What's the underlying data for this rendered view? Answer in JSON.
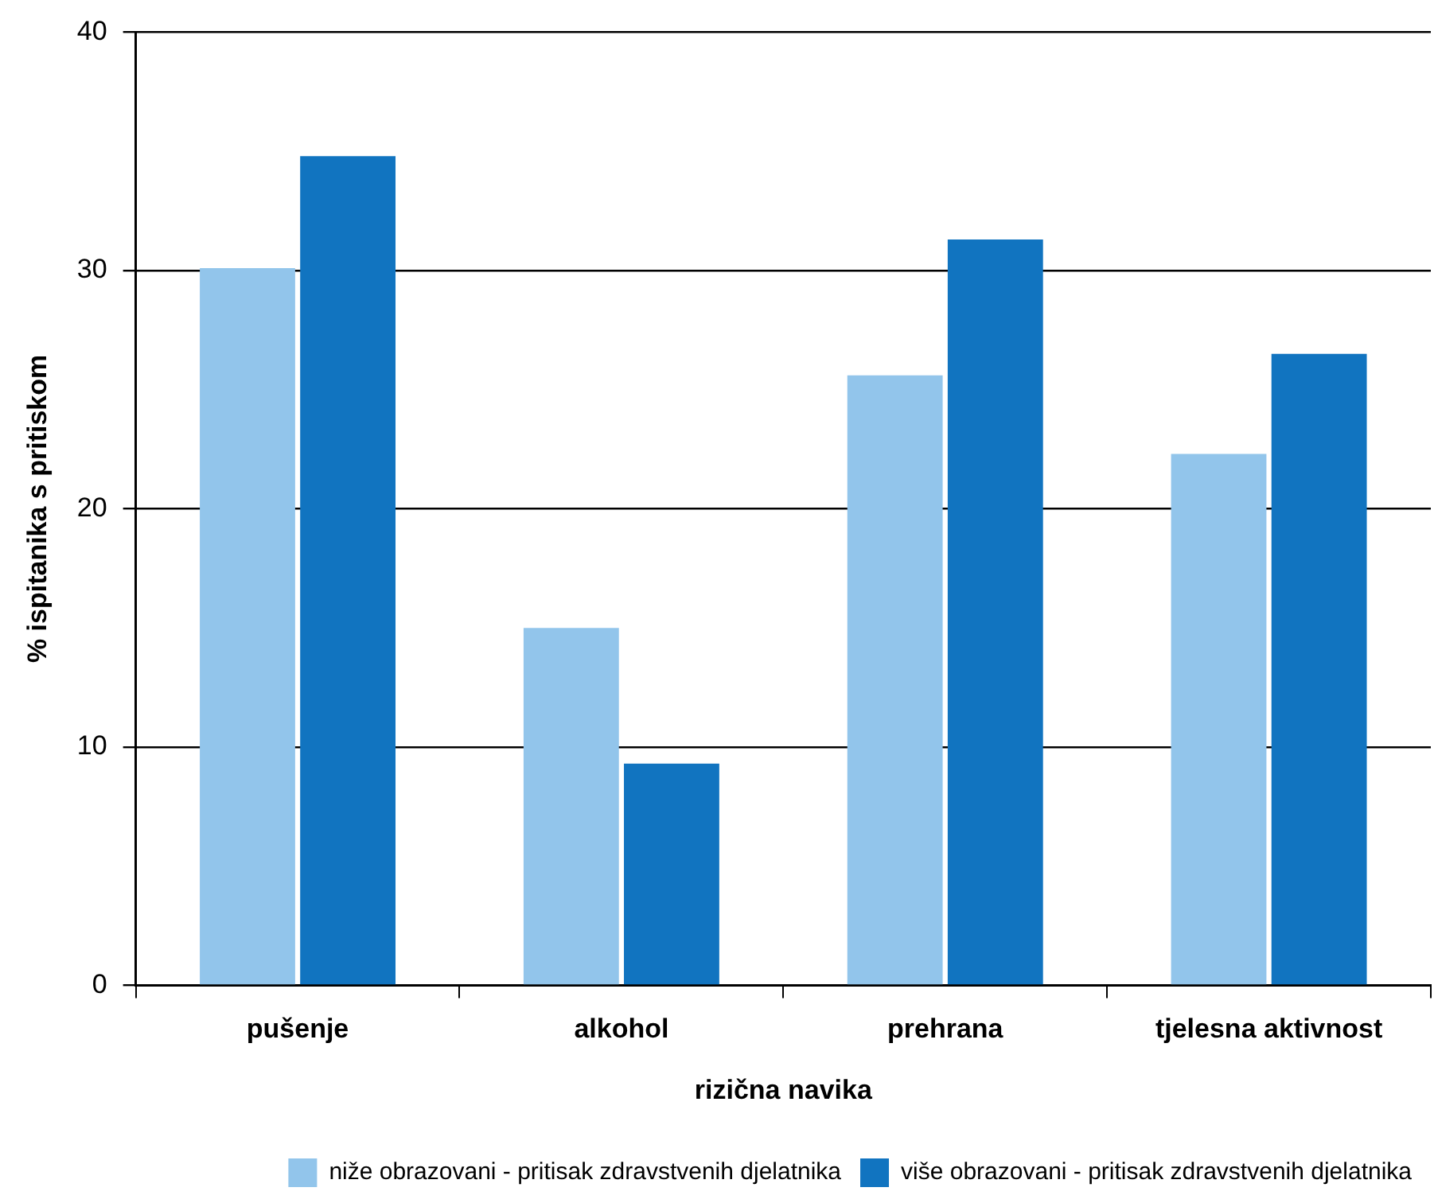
{
  "chart_data": {
    "type": "bar",
    "xlabel": "rizična navika",
    "ylabel": "% ispitanika s pritiskom",
    "categories": [
      "pušenje",
      "alkohol",
      "prehrana",
      "tjelesna aktivnost"
    ],
    "series": [
      {
        "name": "niže obrazovani - pritisak zdravstvenih djelatnika",
        "color": "#92c5eb",
        "values": [
          30.1,
          15.0,
          25.6,
          22.3
        ]
      },
      {
        "name": "više obrazovani - pritisak zdravstvenih djelatnika",
        "color": "#1174c0",
        "values": [
          34.8,
          9.3,
          31.3,
          26.5
        ]
      }
    ],
    "ylim": [
      0,
      40
    ],
    "yticks": [
      0,
      10,
      20,
      30,
      40
    ],
    "grid": "y",
    "legend": "bottom right"
  }
}
